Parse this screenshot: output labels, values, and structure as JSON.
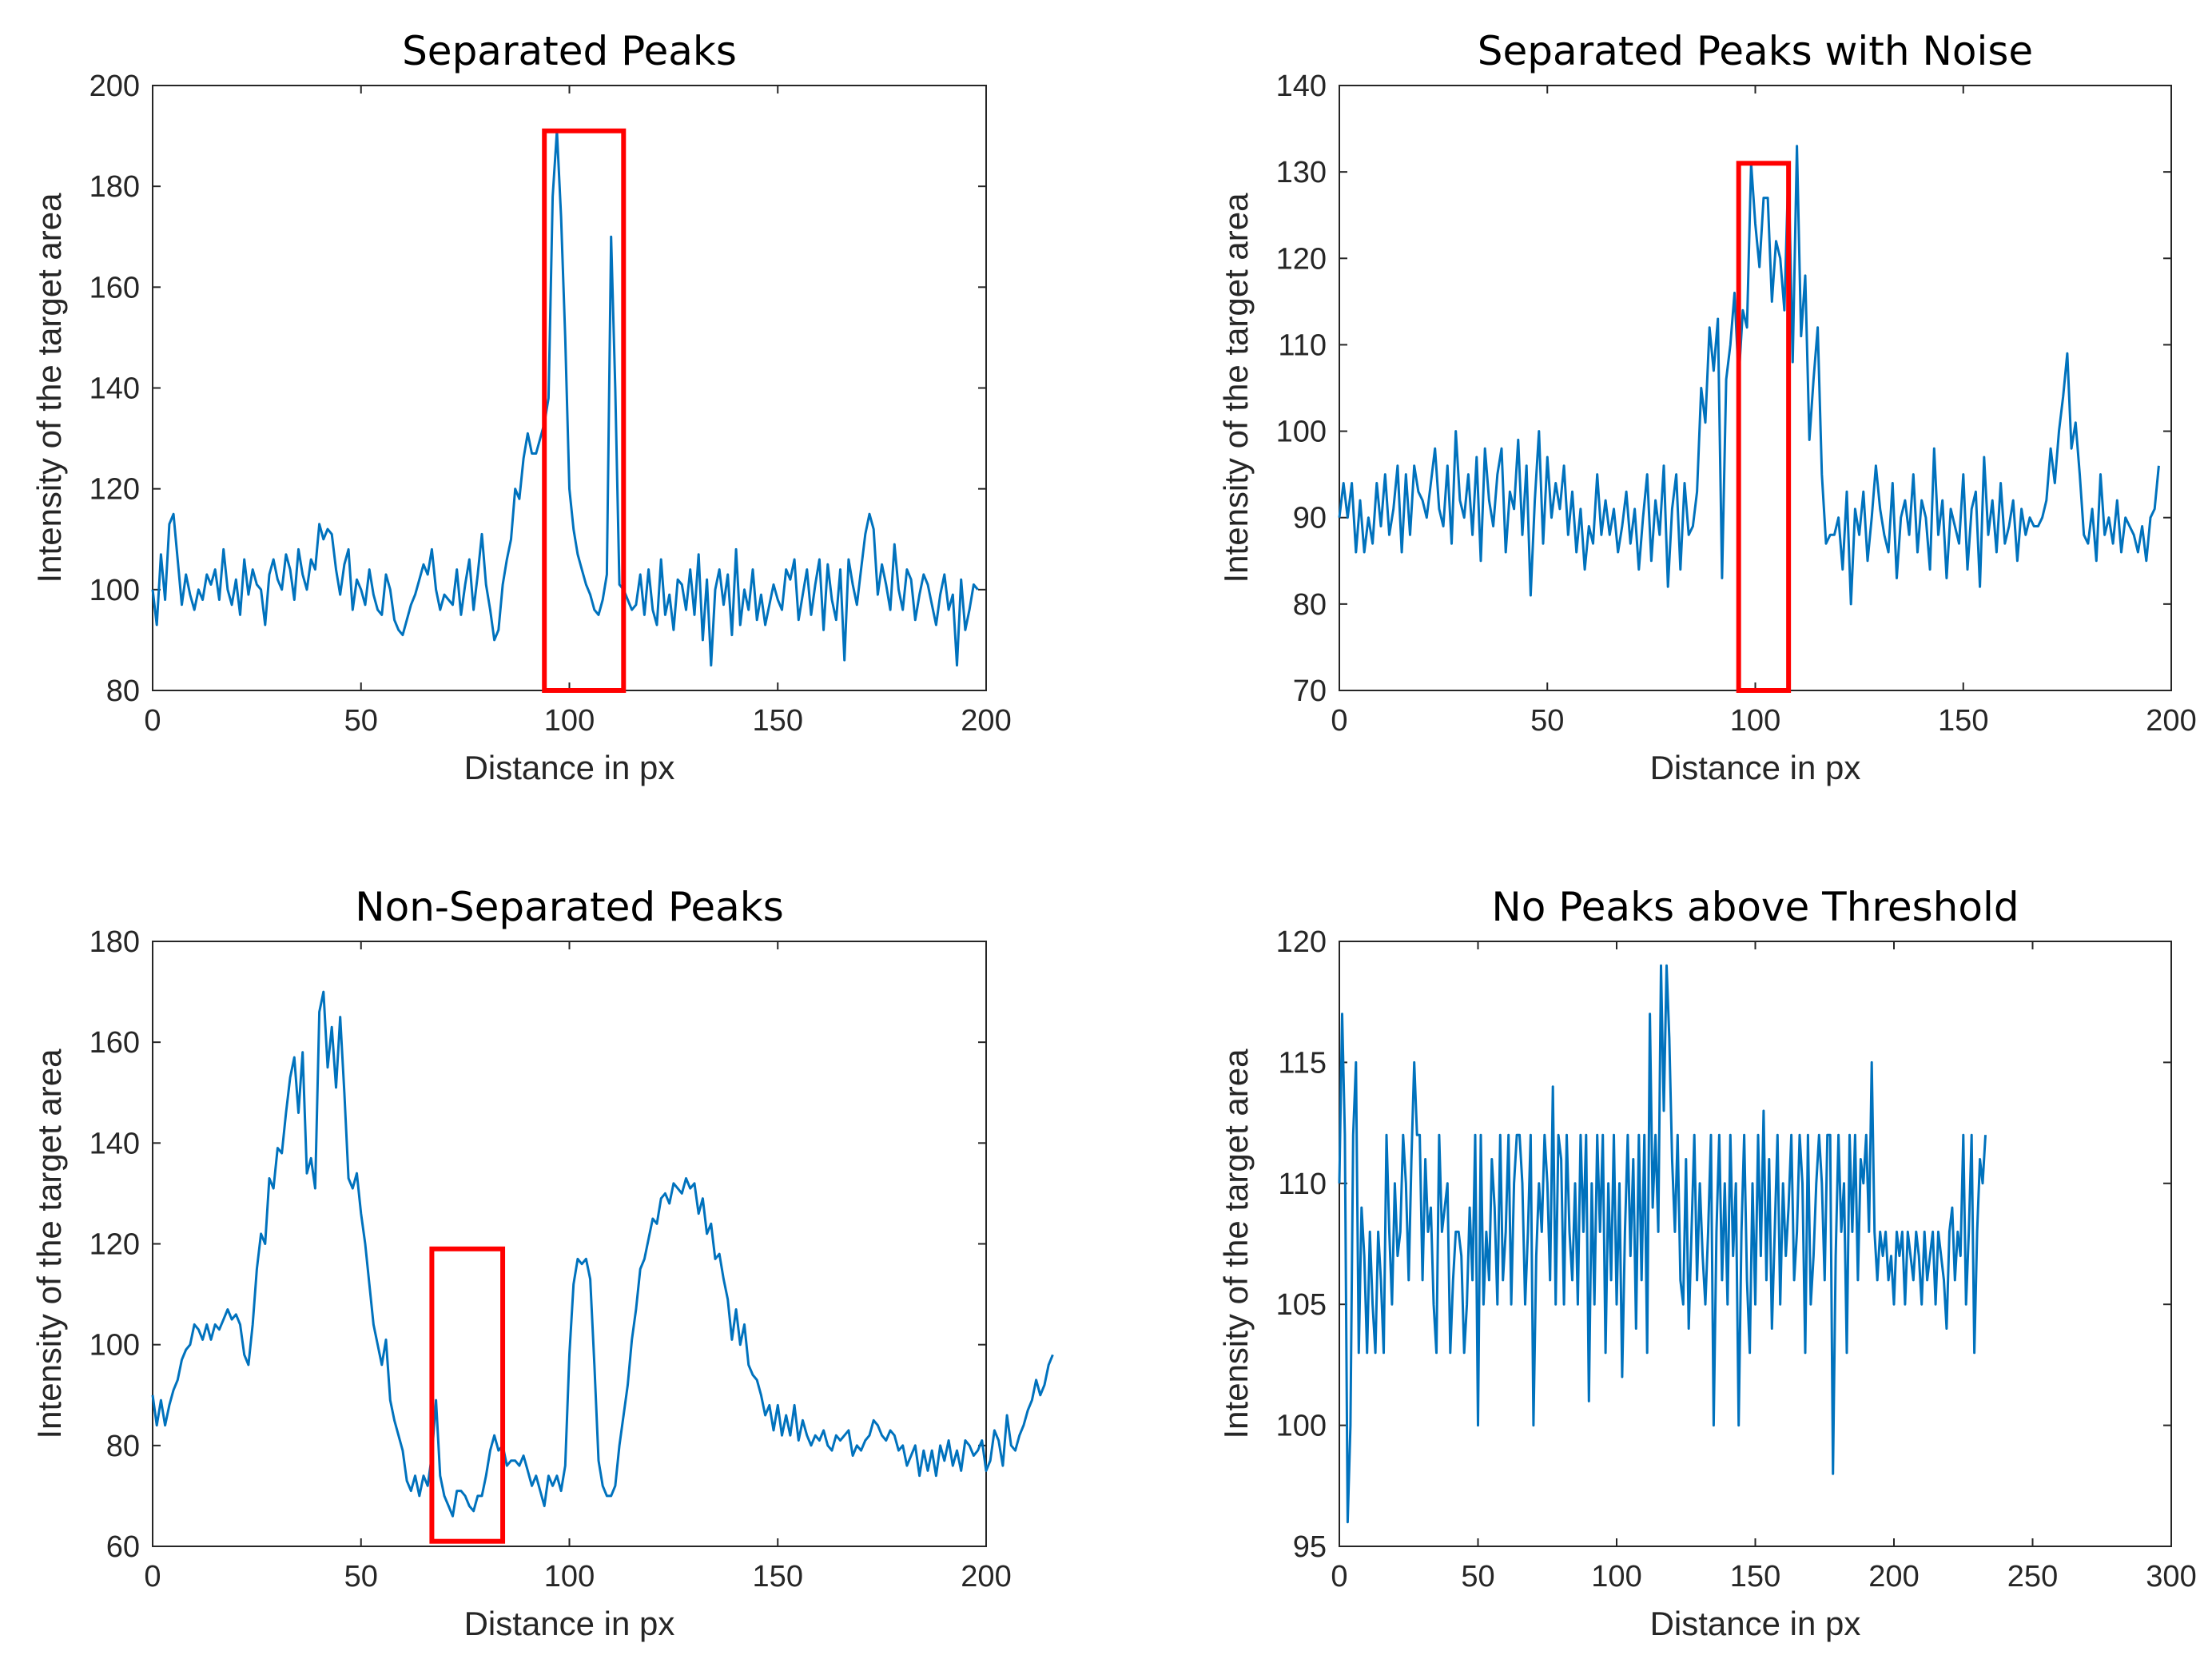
{
  "figure": {
    "line_color": "#0072BD",
    "highlight_color": "#FF0000",
    "axis_color": "#262626"
  },
  "chart_data": [
    {
      "type": "line",
      "title": "Separated Peaks",
      "xlabel": "Distance in px",
      "ylabel": "Intensity of the target area",
      "xlim": [
        0,
        200
      ],
      "ylim": [
        80,
        200
      ],
      "xticks": [
        0,
        50,
        100,
        150,
        200
      ],
      "yticks": [
        80,
        100,
        120,
        140,
        160,
        180,
        200
      ],
      "highlight": {
        "x": [
          94,
          113
        ],
        "y": [
          80,
          191
        ]
      },
      "series": [
        {
          "name": "intensity",
          "x_start": 0,
          "x_step": 1,
          "values": [
            100,
            93,
            107,
            98,
            113,
            115,
            106,
            97,
            103,
            99,
            96,
            100,
            98,
            103,
            101,
            104,
            98,
            108,
            100,
            97,
            102,
            95,
            106,
            99,
            104,
            101,
            100,
            93,
            103,
            106,
            102,
            100,
            107,
            104,
            98,
            108,
            103,
            100,
            106,
            104,
            113,
            110,
            112,
            111,
            104,
            99,
            105,
            108,
            96,
            102,
            100,
            97,
            104,
            99,
            96,
            95,
            103,
            100,
            94,
            92,
            91,
            94,
            97,
            99,
            102,
            105,
            103,
            108,
            100,
            96,
            99,
            98,
            97,
            104,
            95,
            101,
            106,
            96,
            103,
            111,
            101,
            96,
            90,
            92,
            101,
            106,
            110,
            120,
            118,
            126,
            131,
            127,
            127,
            130,
            133,
            138,
            178,
            191,
            174,
            150,
            120,
            112,
            107,
            104,
            101,
            99,
            96,
            95,
            98,
            103,
            170,
            140,
            101,
            100,
            98,
            96,
            97,
            103,
            95,
            104,
            96,
            93,
            106,
            95,
            99,
            92,
            102,
            101,
            96,
            104,
            95,
            107,
            90,
            102,
            85,
            100,
            104,
            97,
            103,
            91,
            108,
            93,
            100,
            96,
            104,
            94,
            99,
            93,
            97,
            101,
            98,
            96,
            104,
            102,
            106,
            94,
            99,
            104,
            95,
            101,
            106,
            92,
            105,
            98,
            94,
            104,
            86,
            106,
            101,
            97,
            104,
            111,
            115,
            112,
            99,
            105,
            101,
            96,
            109,
            100,
            96,
            104,
            102,
            94,
            99,
            103,
            101,
            97,
            93,
            99,
            103,
            96,
            99,
            85,
            102,
            92,
            96,
            101,
            100
          ]
        }
      ]
    },
    {
      "type": "line",
      "title": "Separated Peaks with Noise",
      "xlabel": "Distance in px",
      "ylabel": "Intensity of the target area",
      "xlim": [
        0,
        200
      ],
      "ylim": [
        70,
        140
      ],
      "xticks": [
        0,
        50,
        100,
        150,
        200
      ],
      "yticks": [
        70,
        80,
        90,
        100,
        110,
        120,
        130,
        140
      ],
      "highlight": {
        "x": [
          96,
          108
        ],
        "y": [
          70,
          131
        ]
      },
      "series": [
        {
          "name": "intensity",
          "x_start": 0,
          "x_step": 1,
          "values": [
            90,
            94,
            90,
            94,
            86,
            92,
            86,
            90,
            87,
            94,
            89,
            95,
            88,
            91,
            96,
            86,
            95,
            88,
            96,
            93,
            92,
            90,
            94,
            98,
            91,
            89,
            96,
            87,
            100,
            92,
            90,
            95,
            88,
            97,
            85,
            98,
            92,
            89,
            95,
            98,
            86,
            93,
            91,
            99,
            88,
            96,
            81,
            92,
            100,
            87,
            97,
            90,
            94,
            91,
            96,
            88,
            93,
            86,
            91,
            84,
            89,
            87,
            95,
            88,
            92,
            88,
            91,
            86,
            89,
            93,
            87,
            91,
            84,
            90,
            95,
            85,
            92,
            88,
            96,
            82,
            91,
            95,
            84,
            94,
            88,
            89,
            93,
            105,
            101,
            112,
            107,
            113,
            83,
            106,
            110,
            116,
            106,
            114,
            112,
            131,
            124,
            119,
            127,
            127,
            115,
            122,
            120,
            114,
            131,
            108,
            133,
            111,
            118,
            99,
            106,
            112,
            95,
            87,
            88,
            88,
            90,
            84,
            93,
            80,
            91,
            88,
            93,
            85,
            90,
            96,
            91,
            88,
            86,
            94,
            83,
            90,
            92,
            88,
            95,
            86,
            92,
            90,
            84,
            98,
            88,
            92,
            83,
            91,
            89,
            87,
            95,
            84,
            91,
            93,
            82,
            97,
            88,
            92,
            86,
            94,
            87,
            89,
            92,
            85,
            91,
            88,
            90,
            89,
            89,
            90,
            92,
            98,
            94,
            100,
            104,
            109,
            98,
            101,
            95,
            88,
            87,
            91,
            85,
            95,
            88,
            90,
            87,
            92,
            86,
            90,
            89,
            88,
            86,
            89,
            85,
            90,
            91,
            96
          ]
        }
      ]
    },
    {
      "type": "line",
      "title": "Non-Separated Peaks",
      "xlabel": "Distance in px",
      "ylabel": "Intensity of the target area",
      "xlim": [
        0,
        200
      ],
      "ylim": [
        60,
        180
      ],
      "xticks": [
        0,
        50,
        100,
        150,
        200
      ],
      "yticks": [
        60,
        80,
        100,
        120,
        140,
        160,
        180
      ],
      "highlight": {
        "x": [
          67,
          84
        ],
        "y": [
          61,
          119
        ]
      },
      "series": [
        {
          "name": "intensity",
          "x_start": 0,
          "x_step": 1,
          "values": [
            90,
            84,
            89,
            84,
            88,
            91,
            93,
            97,
            99,
            100,
            104,
            103,
            101,
            104,
            101,
            104,
            103,
            105,
            107,
            105,
            106,
            104,
            98,
            96,
            104,
            115,
            122,
            120,
            133,
            131,
            139,
            138,
            146,
            153,
            157,
            146,
            158,
            134,
            137,
            131,
            166,
            170,
            155,
            163,
            151,
            165,
            150,
            133,
            131,
            134,
            126,
            120,
            112,
            104,
            100,
            96,
            101,
            89,
            85,
            82,
            79,
            73,
            71,
            74,
            70,
            74,
            72,
            78,
            89,
            74,
            70,
            68,
            66,
            71,
            71,
            70,
            68,
            67,
            70,
            70,
            74,
            79,
            82,
            79,
            80,
            76,
            77,
            77,
            76,
            78,
            75,
            72,
            74,
            71,
            68,
            74,
            72,
            74,
            71,
            76,
            98,
            112,
            117,
            116,
            117,
            113,
            96,
            77,
            72,
            70,
            70,
            72,
            80,
            86,
            92,
            101,
            107,
            115,
            117,
            121,
            125,
            124,
            129,
            130,
            128,
            132,
            131,
            130,
            133,
            131,
            132,
            126,
            129,
            122,
            124,
            117,
            118,
            113,
            109,
            101,
            107,
            100,
            104,
            96,
            94,
            93,
            90,
            86,
            88,
            83,
            88,
            82,
            86,
            82,
            88,
            81,
            85,
            82,
            80,
            82,
            81,
            83,
            80,
            79,
            82,
            81,
            82,
            83,
            78,
            80,
            79,
            81,
            82,
            85,
            84,
            82,
            81,
            83,
            82,
            79,
            80,
            76,
            78,
            80,
            74,
            79,
            75,
            79,
            74,
            80,
            77,
            81,
            76,
            79,
            75,
            81,
            80,
            78,
            79,
            81,
            75,
            77,
            83,
            81,
            76,
            86,
            80,
            79,
            82,
            84,
            87,
            89,
            93,
            90,
            92,
            96,
            98
          ]
        }
      ]
    },
    {
      "type": "line",
      "title": "No Peaks above Threshold",
      "xlabel": "Distance in px",
      "ylabel": "Intensity of the target area",
      "xlim": [
        0,
        300
      ],
      "ylim": [
        95,
        120
      ],
      "xticks": [
        0,
        50,
        100,
        150,
        200,
        250,
        300
      ],
      "yticks": [
        95,
        100,
        105,
        110,
        115,
        120
      ],
      "highlight": null,
      "series": [
        {
          "name": "intensity",
          "x_start": 0,
          "x_step": 1,
          "values": [
            110,
            117,
            112,
            96,
            100,
            112,
            115,
            103,
            109,
            107,
            103,
            108,
            105,
            103,
            108,
            106,
            103,
            112,
            108,
            105,
            110,
            107,
            108,
            112,
            110,
            106,
            111,
            115,
            112,
            112,
            106,
            111,
            108,
            109,
            105,
            103,
            112,
            108,
            109,
            110,
            103,
            106,
            108,
            108,
            107,
            103,
            105,
            109,
            106,
            112,
            100,
            112,
            105,
            108,
            106,
            111,
            109,
            105,
            112,
            106,
            108,
            112,
            105,
            110,
            112,
            112,
            110,
            105,
            108,
            112,
            100,
            107,
            110,
            108,
            112,
            110,
            106,
            114,
            105,
            112,
            111,
            105,
            112,
            108,
            106,
            110,
            105,
            112,
            108,
            112,
            101,
            110,
            105,
            112,
            108,
            112,
            103,
            110,
            106,
            112,
            105,
            110,
            102,
            108,
            112,
            107,
            111,
            104,
            112,
            106,
            112,
            103,
            117,
            109,
            112,
            108,
            119,
            113,
            119,
            116,
            111,
            108,
            112,
            106,
            105,
            111,
            104,
            108,
            112,
            106,
            110,
            107,
            105,
            108,
            112,
            100,
            108,
            112,
            106,
            110,
            105,
            112,
            107,
            110,
            100,
            108,
            112,
            106,
            103,
            110,
            105,
            112,
            107,
            113,
            106,
            111,
            104,
            108,
            112,
            105,
            110,
            107,
            109,
            112,
            106,
            108,
            112,
            110,
            103,
            112,
            105,
            107,
            110,
            112,
            110,
            106,
            112,
            112,
            98,
            107,
            112,
            108,
            110,
            103,
            112,
            108,
            112,
            106,
            111,
            110,
            112,
            108,
            115,
            108,
            106,
            108,
            107,
            108,
            106,
            107,
            105,
            108,
            107,
            108,
            105,
            108,
            107,
            106,
            108,
            107,
            105,
            108,
            106,
            107,
            108,
            105,
            108,
            107,
            106,
            104,
            108,
            109,
            106,
            108,
            107,
            112,
            105,
            108,
            112,
            103,
            108,
            111,
            110,
            112
          ]
        }
      ]
    }
  ]
}
